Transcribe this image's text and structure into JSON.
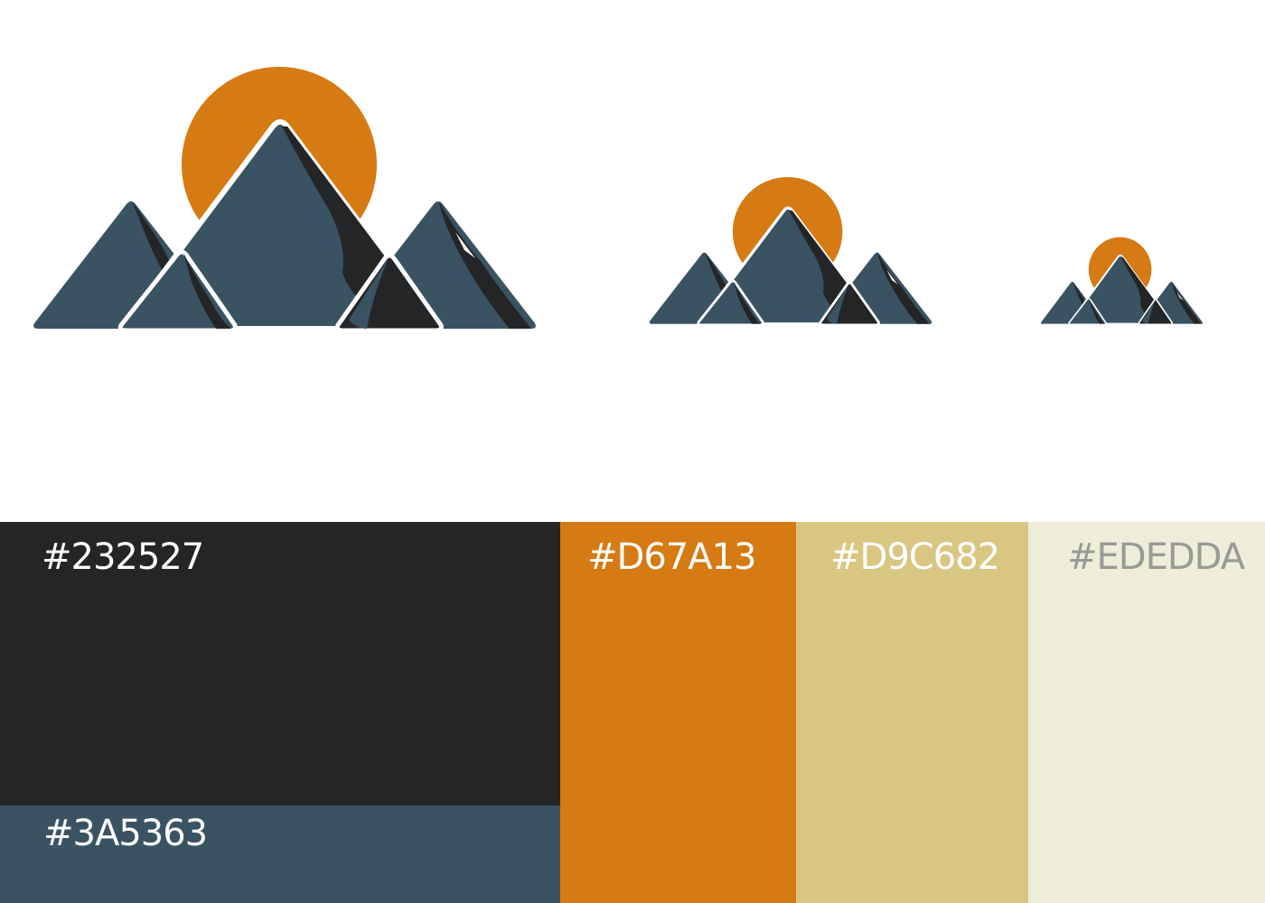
{
  "logo": {
    "colors": {
      "sun": "#D67A13",
      "mountain": "#3A5363",
      "shadow": "#232527",
      "outline": "#FFFFFF"
    },
    "variants": [
      "large",
      "medium",
      "small"
    ]
  },
  "palette": [
    {
      "id": "dark",
      "label": "#232527",
      "color": "#232527",
      "text_color": "#FFFFFF"
    },
    {
      "id": "slate",
      "label": "#3A5363",
      "color": "#3A5363",
      "text_color": "#FFFFFF"
    },
    {
      "id": "orange",
      "label": "#D67A13",
      "color": "#D67A13",
      "text_color": "#FFFFFF"
    },
    {
      "id": "sand",
      "label": "#D9C682",
      "color": "#D9C682",
      "text_color": "#FFFFFF"
    },
    {
      "id": "cream",
      "label": "#EDEDDA",
      "color": "#EDEDDA",
      "text_color": "#9A9A96"
    }
  ]
}
